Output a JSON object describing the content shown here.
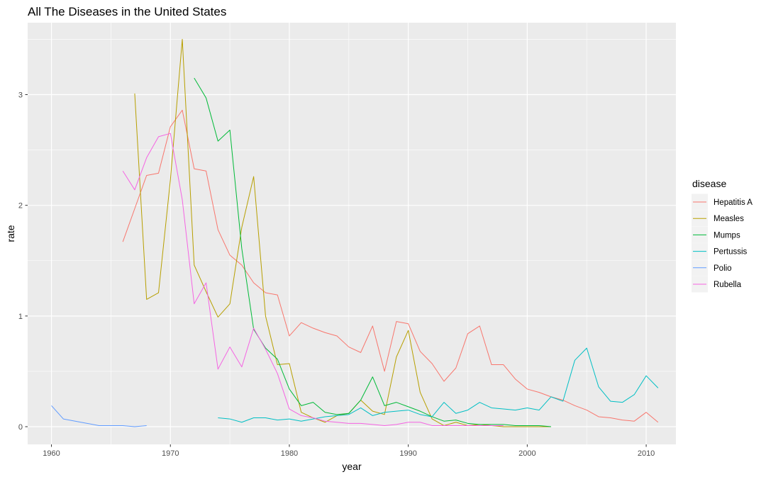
{
  "chart_data": {
    "type": "line",
    "title": "All The Diseases in the United States",
    "xlabel": "year",
    "ylabel": "rate",
    "xlim": [
      1958,
      2012.5
    ],
    "ylim": [
      -0.16,
      3.65
    ],
    "x_ticks": [
      1960,
      1970,
      1980,
      1990,
      2000,
      2010
    ],
    "y_ticks": [
      0,
      1,
      2,
      3
    ],
    "grid": true,
    "panel_background": "#ebebeb",
    "legend": {
      "title": "disease",
      "placement": "right"
    },
    "series": [
      {
        "name": "Hepatitis A",
        "color": "#F8766D",
        "points": [
          [
            1966,
            1.67
          ],
          [
            1967,
            1.97
          ],
          [
            1968,
            2.27
          ],
          [
            1969,
            2.29
          ],
          [
            1970,
            2.71
          ],
          [
            1971,
            2.86
          ],
          [
            1972,
            2.33
          ],
          [
            1973,
            2.31
          ],
          [
            1974,
            1.78
          ],
          [
            1975,
            1.55
          ],
          [
            1976,
            1.46
          ],
          [
            1977,
            1.3
          ],
          [
            1978,
            1.21
          ],
          [
            1979,
            1.19
          ],
          [
            1980,
            0.82
          ],
          [
            1981,
            0.94
          ],
          [
            1982,
            0.89
          ],
          [
            1983,
            0.85
          ],
          [
            1984,
            0.82
          ],
          [
            1985,
            0.72
          ],
          [
            1986,
            0.67
          ],
          [
            1987,
            0.91
          ],
          [
            1988,
            0.5
          ],
          [
            1989,
            0.95
          ],
          [
            1990,
            0.93
          ],
          [
            1991,
            0.68
          ],
          [
            1992,
            0.57
          ],
          [
            1993,
            0.41
          ],
          [
            1994,
            0.53
          ],
          [
            1995,
            0.84
          ],
          [
            1996,
            0.91
          ],
          [
            1997,
            0.56
          ],
          [
            1998,
            0.56
          ],
          [
            1999,
            0.43
          ],
          [
            2000,
            0.34
          ],
          [
            2001,
            0.31
          ],
          [
            2002,
            0.27
          ],
          [
            2003,
            0.24
          ],
          [
            2004,
            0.19
          ],
          [
            2005,
            0.15
          ],
          [
            2006,
            0.09
          ],
          [
            2007,
            0.08
          ],
          [
            2008,
            0.06
          ],
          [
            2009,
            0.05
          ],
          [
            2010,
            0.13
          ],
          [
            2011,
            0.04
          ]
        ]
      },
      {
        "name": "Measles",
        "color": "#B79F00",
        "points": [
          [
            1967,
            3.01
          ],
          [
            1968,
            1.15
          ],
          [
            1969,
            1.21
          ],
          [
            1970,
            2.23
          ],
          [
            1971,
            3.5
          ],
          [
            1972,
            1.46
          ],
          [
            1973,
            1.22
          ],
          [
            1974,
            0.99
          ],
          [
            1975,
            1.11
          ],
          [
            1976,
            1.8
          ],
          [
            1977,
            2.26
          ],
          [
            1978,
            1.0
          ],
          [
            1979,
            0.56
          ],
          [
            1980,
            0.57
          ],
          [
            1981,
            0.13
          ],
          [
            1982,
            0.08
          ],
          [
            1983,
            0.04
          ],
          [
            1984,
            0.1
          ],
          [
            1985,
            0.12
          ],
          [
            1986,
            0.24
          ],
          [
            1987,
            0.14
          ],
          [
            1988,
            0.11
          ],
          [
            1989,
            0.63
          ],
          [
            1990,
            0.87
          ],
          [
            1991,
            0.31
          ],
          [
            1992,
            0.07
          ],
          [
            1993,
            0.01
          ],
          [
            1994,
            0.04
          ],
          [
            1995,
            0.01
          ],
          [
            1996,
            0.02
          ],
          [
            1997,
            0.01
          ],
          [
            1998,
            0.0
          ],
          [
            1999,
            0.0
          ],
          [
            2000,
            0.0
          ],
          [
            2001,
            0.0
          ],
          [
            2002,
            0.0
          ]
        ]
      },
      {
        "name": "Mumps",
        "color": "#00BA38",
        "points": [
          [
            1972,
            3.15
          ],
          [
            1973,
            2.97
          ],
          [
            1974,
            2.58
          ],
          [
            1975,
            2.68
          ],
          [
            1976,
            1.61
          ],
          [
            1977,
            0.88
          ],
          [
            1978,
            0.71
          ],
          [
            1979,
            0.61
          ],
          [
            1980,
            0.34
          ],
          [
            1981,
            0.19
          ],
          [
            1982,
            0.22
          ],
          [
            1983,
            0.13
          ],
          [
            1984,
            0.11
          ],
          [
            1985,
            0.12
          ],
          [
            1986,
            0.24
          ],
          [
            1987,
            0.45
          ],
          [
            1988,
            0.19
          ],
          [
            1989,
            0.22
          ],
          [
            1990,
            0.18
          ],
          [
            1991,
            0.14
          ],
          [
            1992,
            0.09
          ],
          [
            1993,
            0.05
          ],
          [
            1994,
            0.06
          ],
          [
            1995,
            0.03
          ],
          [
            1996,
            0.02
          ],
          [
            1997,
            0.02
          ],
          [
            1998,
            0.02
          ],
          [
            1999,
            0.01
          ],
          [
            2000,
            0.01
          ],
          [
            2001,
            0.01
          ],
          [
            2002,
            0.0
          ]
        ]
      },
      {
        "name": "Pertussis",
        "color": "#00BFC4",
        "points": [
          [
            1974,
            0.08
          ],
          [
            1975,
            0.07
          ],
          [
            1976,
            0.04
          ],
          [
            1977,
            0.08
          ],
          [
            1978,
            0.08
          ],
          [
            1979,
            0.06
          ],
          [
            1980,
            0.07
          ],
          [
            1981,
            0.05
          ],
          [
            1982,
            0.07
          ],
          [
            1983,
            0.09
          ],
          [
            1984,
            0.1
          ],
          [
            1985,
            0.11
          ],
          [
            1986,
            0.17
          ],
          [
            1987,
            0.1
          ],
          [
            1988,
            0.13
          ],
          [
            1989,
            0.14
          ],
          [
            1990,
            0.15
          ],
          [
            1991,
            0.11
          ],
          [
            1992,
            0.09
          ],
          [
            1993,
            0.22
          ],
          [
            1994,
            0.12
          ],
          [
            1995,
            0.15
          ],
          [
            1996,
            0.22
          ],
          [
            1997,
            0.17
          ],
          [
            1998,
            0.16
          ],
          [
            1999,
            0.15
          ],
          [
            2000,
            0.17
          ],
          [
            2001,
            0.15
          ],
          [
            2002,
            0.27
          ],
          [
            2003,
            0.23
          ],
          [
            2004,
            0.6
          ],
          [
            2005,
            0.71
          ],
          [
            2006,
            0.36
          ],
          [
            2007,
            0.23
          ],
          [
            2008,
            0.22
          ],
          [
            2009,
            0.29
          ],
          [
            2010,
            0.46
          ],
          [
            2011,
            0.35
          ]
        ]
      },
      {
        "name": "Polio",
        "color": "#619CFF",
        "points": [
          [
            1960,
            0.19
          ],
          [
            1961,
            0.07
          ],
          [
            1962,
            0.05
          ],
          [
            1963,
            0.03
          ],
          [
            1964,
            0.01
          ],
          [
            1965,
            0.01
          ],
          [
            1966,
            0.01
          ],
          [
            1967,
            0.0
          ],
          [
            1968,
            0.01
          ]
        ]
      },
      {
        "name": "Rubella",
        "color": "#F564E3",
        "points": [
          [
            1966,
            2.31
          ],
          [
            1967,
            2.14
          ],
          [
            1968,
            2.43
          ],
          [
            1969,
            2.62
          ],
          [
            1970,
            2.65
          ],
          [
            1971,
            2.05
          ],
          [
            1972,
            1.11
          ],
          [
            1973,
            1.3
          ],
          [
            1974,
            0.52
          ],
          [
            1975,
            0.72
          ],
          [
            1976,
            0.54
          ],
          [
            1977,
            0.89
          ],
          [
            1978,
            0.7
          ],
          [
            1979,
            0.48
          ],
          [
            1980,
            0.16
          ],
          [
            1981,
            0.1
          ],
          [
            1982,
            0.08
          ],
          [
            1983,
            0.05
          ],
          [
            1984,
            0.04
          ],
          [
            1985,
            0.03
          ],
          [
            1986,
            0.03
          ],
          [
            1987,
            0.02
          ],
          [
            1988,
            0.01
          ],
          [
            1989,
            0.02
          ],
          [
            1990,
            0.04
          ],
          [
            1991,
            0.04
          ],
          [
            1992,
            0.01
          ],
          [
            1993,
            0.01
          ],
          [
            1994,
            0.01
          ],
          [
            1995,
            0.01
          ],
          [
            1996,
            0.01
          ],
          [
            1997,
            0.01
          ],
          [
            1998,
            0.01
          ]
        ]
      }
    ]
  }
}
